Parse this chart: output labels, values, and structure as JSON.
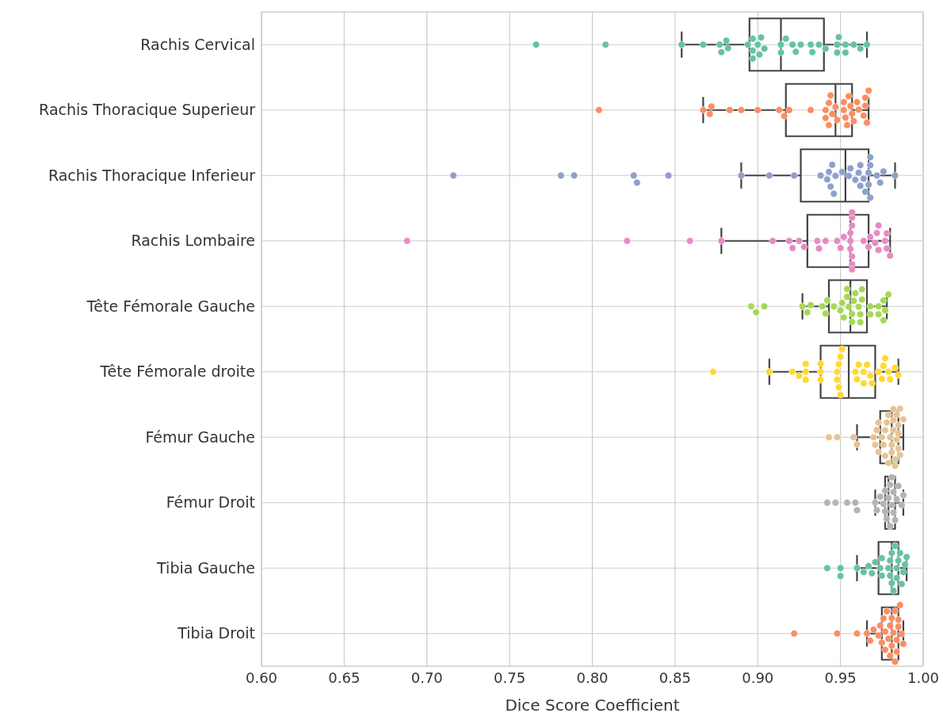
{
  "chart_data": {
    "type": "box",
    "orientation": "horizontal",
    "xlabel": "Dice Score Coefficient",
    "color": "#444444",
    "grid": true,
    "categories": [
      "Rachis Cervical",
      "Rachis Thoracique Superieur",
      "Rachis Thoracique Inferieur",
      "Rachis Lombaire",
      "Tête Fémorale Gauche",
      "Tête Fémorale droite",
      "Fémur Gauche",
      "Fémur Droit",
      "Tibia Gauche",
      "Tibia Droit"
    ],
    "xlim": [
      0.6,
      1.0
    ],
    "xticks": [
      {
        "value": 0.6,
        "label": "0.60"
      },
      {
        "value": 0.65,
        "label": "0.65"
      },
      {
        "value": 0.7,
        "label": "0.70"
      },
      {
        "value": 0.75,
        "label": "0.75"
      },
      {
        "value": 0.8,
        "label": "0.80"
      },
      {
        "value": 0.85,
        "label": "0.85"
      },
      {
        "value": 0.9,
        "label": "0.90"
      },
      {
        "value": 0.95,
        "label": "0.95"
      },
      {
        "value": 1.0,
        "label": "1.00"
      }
    ],
    "boxes": [
      {
        "low": 0.854,
        "q1": 0.895,
        "median": 0.914,
        "q3": 0.94,
        "high": 0.966
      },
      {
        "low": 0.867,
        "q1": 0.917,
        "median": 0.947,
        "q3": 0.957,
        "high": 0.967
      },
      {
        "low": 0.89,
        "q1": 0.926,
        "median": 0.953,
        "q3": 0.967,
        "high": 0.983
      },
      {
        "low": 0.878,
        "q1": 0.93,
        "median": 0.956,
        "q3": 0.967,
        "high": 0.98
      },
      {
        "low": 0.927,
        "q1": 0.943,
        "median": 0.956,
        "q3": 0.966,
        "high": 0.978
      },
      {
        "low": 0.907,
        "q1": 0.938,
        "median": 0.955,
        "q3": 0.971,
        "high": 0.985
      },
      {
        "low": 0.96,
        "q1": 0.974,
        "median": 0.981,
        "q3": 0.985,
        "high": 0.988
      },
      {
        "low": 0.971,
        "q1": 0.977,
        "median": 0.979,
        "q3": 0.983,
        "high": 0.988
      },
      {
        "low": 0.96,
        "q1": 0.973,
        "median": 0.981,
        "q3": 0.985,
        "high": 0.99
      },
      {
        "low": 0.966,
        "q1": 0.975,
        "median": 0.981,
        "q3": 0.985,
        "high": 0.988
      }
    ],
    "series": [
      {
        "type": "scatter",
        "color": "#66c2a5",
        "x": [
          "Rachis Cervical",
          "Rachis Cervical",
          "Rachis Cervical",
          "Rachis Cervical",
          "Rachis Cervical",
          "Rachis Cervical",
          "Rachis Cervical",
          "Rachis Cervical",
          "Rachis Cervical",
          "Rachis Cervical",
          "Rachis Cervical",
          "Rachis Cervical",
          "Rachis Cervical",
          "Rachis Cervical",
          "Rachis Cervical",
          "Rachis Cervical",
          "Rachis Cervical",
          "Rachis Cervical",
          "Rachis Cervical",
          "Rachis Cervical",
          "Rachis Cervical",
          "Rachis Cervical",
          "Rachis Cervical",
          "Rachis Cervical",
          "Rachis Cervical",
          "Rachis Cervical",
          "Rachis Cervical",
          "Rachis Cervical",
          "Rachis Cervical",
          "Rachis Cervical",
          "Rachis Cervical",
          "Rachis Cervical",
          "Rachis Cervical",
          "Rachis Cervical"
        ],
        "values": [
          0.766,
          0.808,
          0.854,
          0.867,
          0.877,
          0.881,
          0.878,
          0.882,
          0.894,
          0.897,
          0.897,
          0.897,
          0.901,
          0.902,
          0.9,
          0.904,
          0.914,
          0.914,
          0.917,
          0.921,
          0.923,
          0.926,
          0.932,
          0.933,
          0.937,
          0.941,
          0.948,
          0.949,
          0.948,
          0.953,
          0.953,
          0.958,
          0.962,
          0.966
        ]
      },
      {
        "type": "scatter",
        "color": "#fc8d62",
        "x": [
          "Rachis Thoracique Superieur",
          "Rachis Thoracique Superieur",
          "Rachis Thoracique Superieur",
          "Rachis Thoracique Superieur",
          "Rachis Thoracique Superieur",
          "Rachis Thoracique Superieur",
          "Rachis Thoracique Superieur",
          "Rachis Thoracique Superieur",
          "Rachis Thoracique Superieur",
          "Rachis Thoracique Superieur",
          "Rachis Thoracique Superieur",
          "Rachis Thoracique Superieur",
          "Rachis Thoracique Superieur",
          "Rachis Thoracique Superieur",
          "Rachis Thoracique Superieur",
          "Rachis Thoracique Superieur",
          "Rachis Thoracique Superieur",
          "Rachis Thoracique Superieur",
          "Rachis Thoracique Superieur",
          "Rachis Thoracique Superieur",
          "Rachis Thoracique Superieur",
          "Rachis Thoracique Superieur",
          "Rachis Thoracique Superieur",
          "Rachis Thoracique Superieur",
          "Rachis Thoracique Superieur",
          "Rachis Thoracique Superieur",
          "Rachis Thoracique Superieur",
          "Rachis Thoracique Superieur",
          "Rachis Thoracique Superieur",
          "Rachis Thoracique Superieur",
          "Rachis Thoracique Superieur",
          "Rachis Thoracique Superieur",
          "Rachis Thoracique Superieur",
          "Rachis Thoracique Superieur"
        ],
        "values": [
          0.804,
          0.867,
          0.871,
          0.872,
          0.883,
          0.89,
          0.9,
          0.913,
          0.916,
          0.919,
          0.932,
          0.941,
          0.941,
          0.943,
          0.943,
          0.944,
          0.945,
          0.947,
          0.948,
          0.952,
          0.952,
          0.953,
          0.954,
          0.955,
          0.956,
          0.957,
          0.958,
          0.96,
          0.961,
          0.964,
          0.965,
          0.965,
          0.966,
          0.967
        ]
      },
      {
        "type": "scatter",
        "color": "#8da0cb",
        "x": [
          "Rachis Thoracique Inferieur",
          "Rachis Thoracique Inferieur",
          "Rachis Thoracique Inferieur",
          "Rachis Thoracique Inferieur",
          "Rachis Thoracique Inferieur",
          "Rachis Thoracique Inferieur",
          "Rachis Thoracique Inferieur",
          "Rachis Thoracique Inferieur",
          "Rachis Thoracique Inferieur",
          "Rachis Thoracique Inferieur",
          "Rachis Thoracique Inferieur",
          "Rachis Thoracique Inferieur",
          "Rachis Thoracique Inferieur",
          "Rachis Thoracique Inferieur",
          "Rachis Thoracique Inferieur",
          "Rachis Thoracique Inferieur",
          "Rachis Thoracique Inferieur",
          "Rachis Thoracique Inferieur",
          "Rachis Thoracique Inferieur",
          "Rachis Thoracique Inferieur",
          "Rachis Thoracique Inferieur",
          "Rachis Thoracique Inferieur",
          "Rachis Thoracique Inferieur",
          "Rachis Thoracique Inferieur",
          "Rachis Thoracique Inferieur",
          "Rachis Thoracique Inferieur",
          "Rachis Thoracique Inferieur",
          "Rachis Thoracique Inferieur",
          "Rachis Thoracique Inferieur",
          "Rachis Thoracique Inferieur",
          "Rachis Thoracique Inferieur",
          "Rachis Thoracique Inferieur",
          "Rachis Thoracique Inferieur",
          "Rachis Thoracique Inferieur"
        ],
        "values": [
          0.716,
          0.781,
          0.789,
          0.825,
          0.827,
          0.846,
          0.89,
          0.907,
          0.922,
          0.938,
          0.942,
          0.943,
          0.944,
          0.945,
          0.946,
          0.947,
          0.951,
          0.955,
          0.956,
          0.959,
          0.961,
          0.962,
          0.962,
          0.964,
          0.965,
          0.967,
          0.967,
          0.968,
          0.968,
          0.968,
          0.972,
          0.974,
          0.976,
          0.983
        ]
      },
      {
        "type": "scatter",
        "color": "#e78ac3",
        "x": [
          "Rachis Lombaire",
          "Rachis Lombaire",
          "Rachis Lombaire",
          "Rachis Lombaire",
          "Rachis Lombaire",
          "Rachis Lombaire",
          "Rachis Lombaire",
          "Rachis Lombaire",
          "Rachis Lombaire",
          "Rachis Lombaire",
          "Rachis Lombaire",
          "Rachis Lombaire",
          "Rachis Lombaire",
          "Rachis Lombaire",
          "Rachis Lombaire",
          "Rachis Lombaire",
          "Rachis Lombaire",
          "Rachis Lombaire",
          "Rachis Lombaire",
          "Rachis Lombaire",
          "Rachis Lombaire",
          "Rachis Lombaire",
          "Rachis Lombaire",
          "Rachis Lombaire",
          "Rachis Lombaire",
          "Rachis Lombaire",
          "Rachis Lombaire",
          "Rachis Lombaire",
          "Rachis Lombaire",
          "Rachis Lombaire",
          "Rachis Lombaire",
          "Rachis Lombaire",
          "Rachis Lombaire",
          "Rachis Lombaire",
          "Rachis Lombaire"
        ],
        "values": [
          0.688,
          0.821,
          0.859,
          0.878,
          0.909,
          0.919,
          0.921,
          0.925,
          0.928,
          0.936,
          0.937,
          0.941,
          0.948,
          0.95,
          0.952,
          0.956,
          0.956,
          0.956,
          0.957,
          0.957,
          0.957,
          0.957,
          0.957,
          0.957,
          0.964,
          0.967,
          0.968,
          0.971,
          0.972,
          0.973,
          0.973,
          0.977,
          0.978,
          0.978,
          0.98
        ]
      },
      {
        "type": "scatter",
        "color": "#a6d854",
        "x": [
          "Tête Fémorale Gauche",
          "Tête Fémorale Gauche",
          "Tête Fémorale Gauche",
          "Tête Fémorale Gauche",
          "Tête Fémorale Gauche",
          "Tête Fémorale Gauche",
          "Tête Fémorale Gauche",
          "Tête Fémorale Gauche",
          "Tête Fémorale Gauche",
          "Tête Fémorale Gauche",
          "Tête Fémorale Gauche",
          "Tête Fémorale Gauche",
          "Tête Fémorale Gauche",
          "Tête Fémorale Gauche",
          "Tête Fémorale Gauche",
          "Tête Fémorale Gauche",
          "Tête Fémorale Gauche",
          "Tête Fémorale Gauche",
          "Tête Fémorale Gauche",
          "Tête Fémorale Gauche",
          "Tête Fémorale Gauche",
          "Tête Fémorale Gauche",
          "Tête Fémorale Gauche",
          "Tête Fémorale Gauche",
          "Tête Fémorale Gauche",
          "Tête Fémorale Gauche",
          "Tête Fémorale Gauche",
          "Tête Fémorale Gauche",
          "Tête Fémorale Gauche",
          "Tête Fémorale Gauche",
          "Tête Fémorale Gauche",
          "Tête Fémorale Gauche",
          "Tête Fémorale Gauche"
        ],
        "values": [
          0.896,
          0.899,
          0.904,
          0.927,
          0.93,
          0.932,
          0.939,
          0.941,
          0.942,
          0.946,
          0.95,
          0.951,
          0.952,
          0.954,
          0.954,
          0.955,
          0.957,
          0.957,
          0.958,
          0.959,
          0.961,
          0.962,
          0.962,
          0.963,
          0.963,
          0.968,
          0.968,
          0.973,
          0.973,
          0.976,
          0.976,
          0.977,
          0.979
        ]
      },
      {
        "type": "scatter",
        "color": "#ffd92f",
        "x": [
          "Tête Fémorale droite",
          "Tête Fémorale droite",
          "Tête Fémorale droite",
          "Tête Fémorale droite",
          "Tête Fémorale droite",
          "Tête Fémorale droite",
          "Tête Fémorale droite",
          "Tête Fémorale droite",
          "Tête Fémorale droite",
          "Tête Fémorale droite",
          "Tête Fémorale droite",
          "Tête Fémorale droite",
          "Tête Fémorale droite",
          "Tête Fémorale droite",
          "Tête Fémorale droite",
          "Tête Fémorale droite",
          "Tête Fémorale droite",
          "Tête Fémorale droite",
          "Tête Fémorale droite",
          "Tête Fémorale droite",
          "Tête Fémorale droite",
          "Tête Fémorale droite",
          "Tête Fémorale droite",
          "Tête Fémorale droite",
          "Tête Fémorale droite",
          "Tête Fémorale droite",
          "Tête Fémorale droite",
          "Tête Fémorale droite",
          "Tête Fémorale droite",
          "Tête Fémorale droite",
          "Tête Fémorale droite",
          "Tête Fémorale droite",
          "Tête Fémorale droite"
        ],
        "values": [
          0.873,
          0.907,
          0.921,
          0.925,
          0.929,
          0.929,
          0.929,
          0.938,
          0.938,
          0.938,
          0.948,
          0.948,
          0.949,
          0.949,
          0.95,
          0.95,
          0.951,
          0.959,
          0.96,
          0.961,
          0.964,
          0.964,
          0.966,
          0.968,
          0.969,
          0.973,
          0.975,
          0.976,
          0.977,
          0.979,
          0.98,
          0.983,
          0.985
        ]
      },
      {
        "type": "scatter",
        "color": "#e5c494",
        "x": [
          "Fémur Gauche",
          "Fémur Gauche",
          "Fémur Gauche",
          "Fémur Gauche",
          "Fémur Gauche",
          "Fémur Gauche",
          "Fémur Gauche",
          "Fémur Gauche",
          "Fémur Gauche",
          "Fémur Gauche",
          "Fémur Gauche",
          "Fémur Gauche",
          "Fémur Gauche",
          "Fémur Gauche",
          "Fémur Gauche",
          "Fémur Gauche",
          "Fémur Gauche",
          "Fémur Gauche",
          "Fémur Gauche",
          "Fémur Gauche",
          "Fémur Gauche",
          "Fémur Gauche",
          "Fémur Gauche",
          "Fémur Gauche",
          "Fémur Gauche",
          "Fémur Gauche",
          "Fémur Gauche",
          "Fémur Gauche",
          "Fémur Gauche",
          "Fémur Gauche",
          "Fémur Gauche",
          "Fémur Gauche"
        ],
        "values": [
          0.943,
          0.948,
          0.958,
          0.96,
          0.97,
          0.971,
          0.972,
          0.973,
          0.973,
          0.975,
          0.976,
          0.977,
          0.977,
          0.978,
          0.979,
          0.979,
          0.98,
          0.981,
          0.981,
          0.982,
          0.982,
          0.982,
          0.983,
          0.983,
          0.984,
          0.984,
          0.985,
          0.985,
          0.985,
          0.986,
          0.986,
          0.988
        ]
      },
      {
        "type": "scatter",
        "color": "#b3b3b3",
        "x": [
          "Fémur Droit",
          "Fémur Droit",
          "Fémur Droit",
          "Fémur Droit",
          "Fémur Droit",
          "Fémur Droit",
          "Fémur Droit",
          "Fémur Droit",
          "Fémur Droit",
          "Fémur Droit",
          "Fémur Droit",
          "Fémur Droit",
          "Fémur Droit",
          "Fémur Droit",
          "Fémur Droit",
          "Fémur Droit",
          "Fémur Droit",
          "Fémur Droit",
          "Fémur Droit",
          "Fémur Droit",
          "Fémur Droit",
          "Fémur Droit",
          "Fémur Droit",
          "Fémur Droit"
        ],
        "values": [
          0.942,
          0.947,
          0.954,
          0.959,
          0.96,
          0.971,
          0.972,
          0.974,
          0.976,
          0.977,
          0.977,
          0.978,
          0.979,
          0.98,
          0.98,
          0.981,
          0.981,
          0.982,
          0.982,
          0.983,
          0.984,
          0.985,
          0.987,
          0.988
        ]
      },
      {
        "type": "scatter",
        "color": "#66c2a5",
        "x": [
          "Tibia Gauche",
          "Tibia Gauche",
          "Tibia Gauche",
          "Tibia Gauche",
          "Tibia Gauche",
          "Tibia Gauche",
          "Tibia Gauche",
          "Tibia Gauche",
          "Tibia Gauche",
          "Tibia Gauche",
          "Tibia Gauche",
          "Tibia Gauche",
          "Tibia Gauche",
          "Tibia Gauche",
          "Tibia Gauche",
          "Tibia Gauche",
          "Tibia Gauche",
          "Tibia Gauche",
          "Tibia Gauche",
          "Tibia Gauche",
          "Tibia Gauche",
          "Tibia Gauche",
          "Tibia Gauche",
          "Tibia Gauche",
          "Tibia Gauche",
          "Tibia Gauche"
        ],
        "values": [
          0.942,
          0.95,
          0.95,
          0.96,
          0.964,
          0.967,
          0.969,
          0.971,
          0.974,
          0.975,
          0.975,
          0.979,
          0.98,
          0.98,
          0.981,
          0.981,
          0.982,
          0.983,
          0.984,
          0.984,
          0.985,
          0.986,
          0.987,
          0.988,
          0.989,
          0.99
        ]
      },
      {
        "type": "scatter",
        "color": "#fc8d62",
        "x": [
          "Tibia Droit",
          "Tibia Droit",
          "Tibia Droit",
          "Tibia Droit",
          "Tibia Droit",
          "Tibia Droit",
          "Tibia Droit",
          "Tibia Droit",
          "Tibia Droit",
          "Tibia Droit",
          "Tibia Droit",
          "Tibia Droit",
          "Tibia Droit",
          "Tibia Droit",
          "Tibia Droit",
          "Tibia Droit",
          "Tibia Droit",
          "Tibia Droit",
          "Tibia Droit",
          "Tibia Droit",
          "Tibia Droit",
          "Tibia Droit",
          "Tibia Droit",
          "Tibia Droit",
          "Tibia Droit",
          "Tibia Droit",
          "Tibia Droit",
          "Tibia Droit"
        ],
        "values": [
          0.922,
          0.948,
          0.96,
          0.966,
          0.968,
          0.97,
          0.973,
          0.974,
          0.975,
          0.976,
          0.977,
          0.977,
          0.978,
          0.979,
          0.98,
          0.98,
          0.981,
          0.981,
          0.982,
          0.983,
          0.983,
          0.984,
          0.984,
          0.985,
          0.985,
          0.986,
          0.987,
          0.988
        ]
      }
    ]
  }
}
